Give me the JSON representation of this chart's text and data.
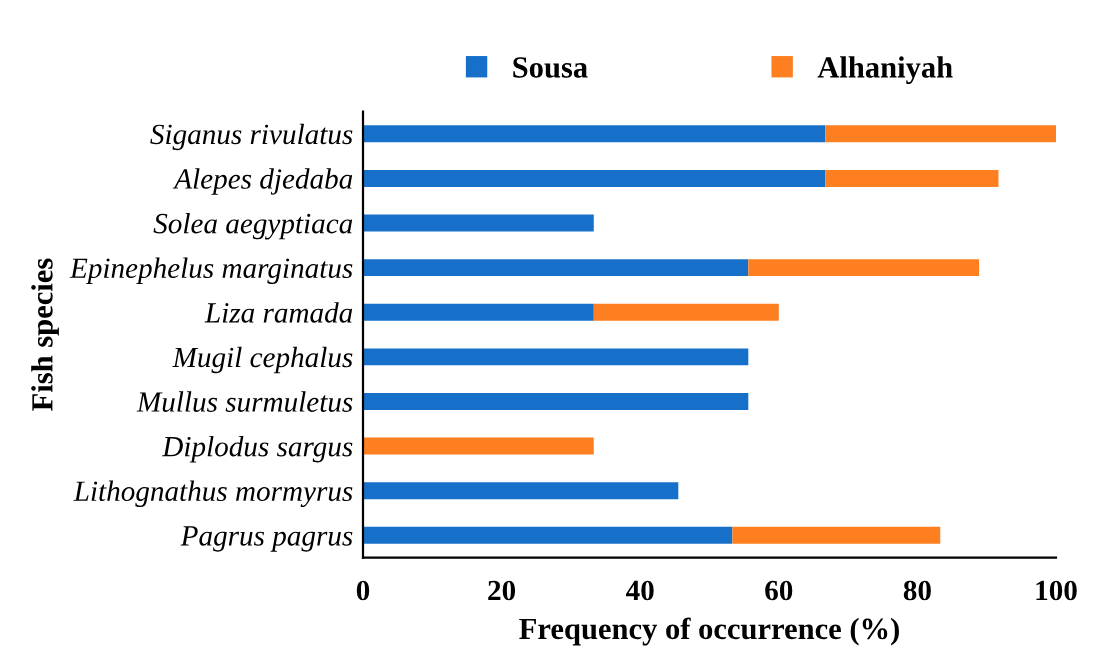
{
  "chart_data": {
    "type": "bar",
    "orientation": "horizontal",
    "stacked": true,
    "categories": [
      "Siganus rivulatus",
      "Alepes djedaba",
      "Solea aegyptiaca",
      "Epinephelus marginatus",
      "Liza ramada",
      "Mugil cephalus",
      "Mullus surmuletus",
      "Diplodus sargus",
      "Lithognathus mormyrus",
      "Pagrus pagrus"
    ],
    "series": [
      {
        "name": "Sousa",
        "color": "#1670c9",
        "values": [
          66.7,
          66.7,
          33.3,
          55.6,
          33.3,
          55.6,
          55.6,
          0,
          45.5,
          53.3
        ]
      },
      {
        "name": "Alhaniyah",
        "color": "#fe7f20",
        "values": [
          33.3,
          25,
          0,
          33.3,
          26.7,
          0,
          0,
          33.3,
          0,
          30
        ]
      }
    ],
    "xlabel": "Frequency of occurrence (%)",
    "ylabel": "Fish species",
    "xlim": [
      0,
      100
    ],
    "xticks": [
      0,
      20,
      40,
      60,
      80,
      100
    ],
    "grid": false,
    "legend": "top"
  }
}
